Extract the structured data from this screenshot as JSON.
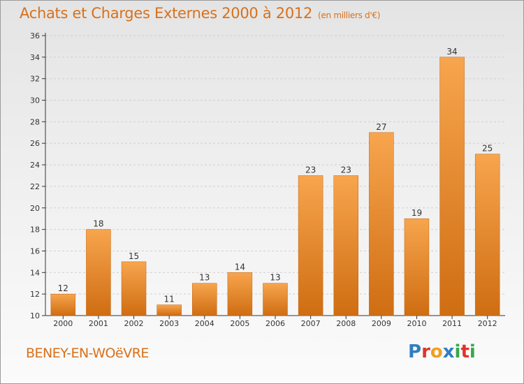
{
  "header": {
    "title": "Achats et Charges Externes 2000 à 2012",
    "unit": "(en milliers d'€)"
  },
  "footer": {
    "town": "BENEY-EN-WOëVRE",
    "logo": [
      {
        "ch": "P",
        "color": "#2f7fc1"
      },
      {
        "ch": "r",
        "color": "#e0342a"
      },
      {
        "ch": "o",
        "color": "#f0a020"
      },
      {
        "ch": "x",
        "color": "#2f7fc1"
      },
      {
        "ch": "i",
        "color": "#3aa64a"
      },
      {
        "ch": "t",
        "color": "#e0342a"
      },
      {
        "ch": "i",
        "color": "#3aa64a"
      }
    ]
  },
  "colors": {
    "bar_light": "#f7a54e",
    "bar_dark": "#cf6d12",
    "accent": "#d8701b",
    "grid": "#cfcfcf",
    "axis": "#333333"
  },
  "chart_data": {
    "type": "bar",
    "categories": [
      "2000",
      "2001",
      "2002",
      "2003",
      "2004",
      "2005",
      "2006",
      "2007",
      "2008",
      "2009",
      "2010",
      "2011",
      "2012"
    ],
    "values": [
      12,
      18,
      15,
      11,
      13,
      14,
      13,
      23,
      23,
      27,
      19,
      34,
      25
    ],
    "ylim": [
      10,
      36
    ],
    "yticks": [
      10,
      12,
      14,
      16,
      18,
      20,
      22,
      24,
      26,
      28,
      30,
      32,
      34,
      36
    ],
    "grid": "horizontal dashed",
    "data_labels": true
  }
}
